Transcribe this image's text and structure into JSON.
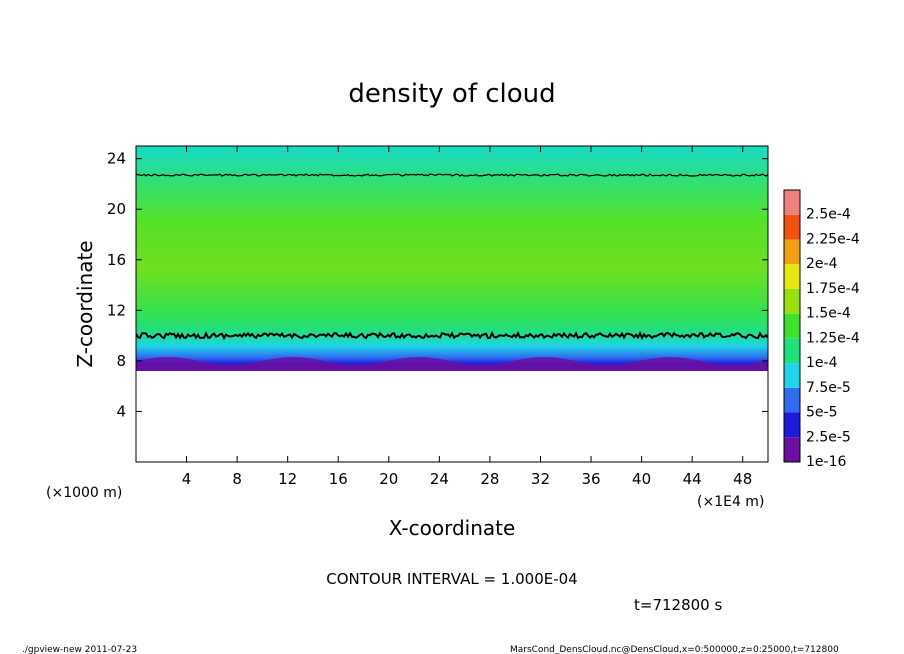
{
  "chart_data": {
    "type": "heatmap",
    "title": "density of cloud",
    "xlabel": "X-coordinate",
    "ylabel": "Z-coordinate",
    "x_unit": "(×1E4 m)",
    "y_unit": "(×1000 m)",
    "xlim": [
      0,
      50
    ],
    "ylim": [
      0,
      25
    ],
    "x_ticks": [
      "4",
      "8",
      "12",
      "16",
      "20",
      "24",
      "28",
      "32",
      "36",
      "40",
      "44",
      "48"
    ],
    "y_ticks": [
      "4",
      "8",
      "12",
      "16",
      "20",
      "24"
    ],
    "colorbar": {
      "labels": [
        "1e-16",
        "2.5e-5",
        "5e-5",
        "7.5e-5",
        "1e-4",
        "1.25e-4",
        "1.5e-4",
        "1.75e-4",
        "2e-4",
        "2.25e-4",
        "2.5e-4"
      ],
      "colors": [
        "#6a0fa0",
        "#1a1ad8",
        "#2f6cf0",
        "#1fd4e8",
        "#20e07a",
        "#40e030",
        "#9ae010",
        "#e8e810",
        "#f0a010",
        "#f05010",
        "#f08080"
      ]
    },
    "contour_interval": "CONTOUR INTERVAL = 1.000E-04",
    "cloud_layer_z_range": [
      7.2,
      25
    ],
    "contour_levels_z": [
      10,
      22.7
    ]
  },
  "time_label": "t=712800 s",
  "footer": {
    "left": "./gpview-new  2011-07-23",
    "right": "MarsCond_DensCloud.nc@DensCloud,x=0:500000,z=0:25000,t=712800"
  }
}
